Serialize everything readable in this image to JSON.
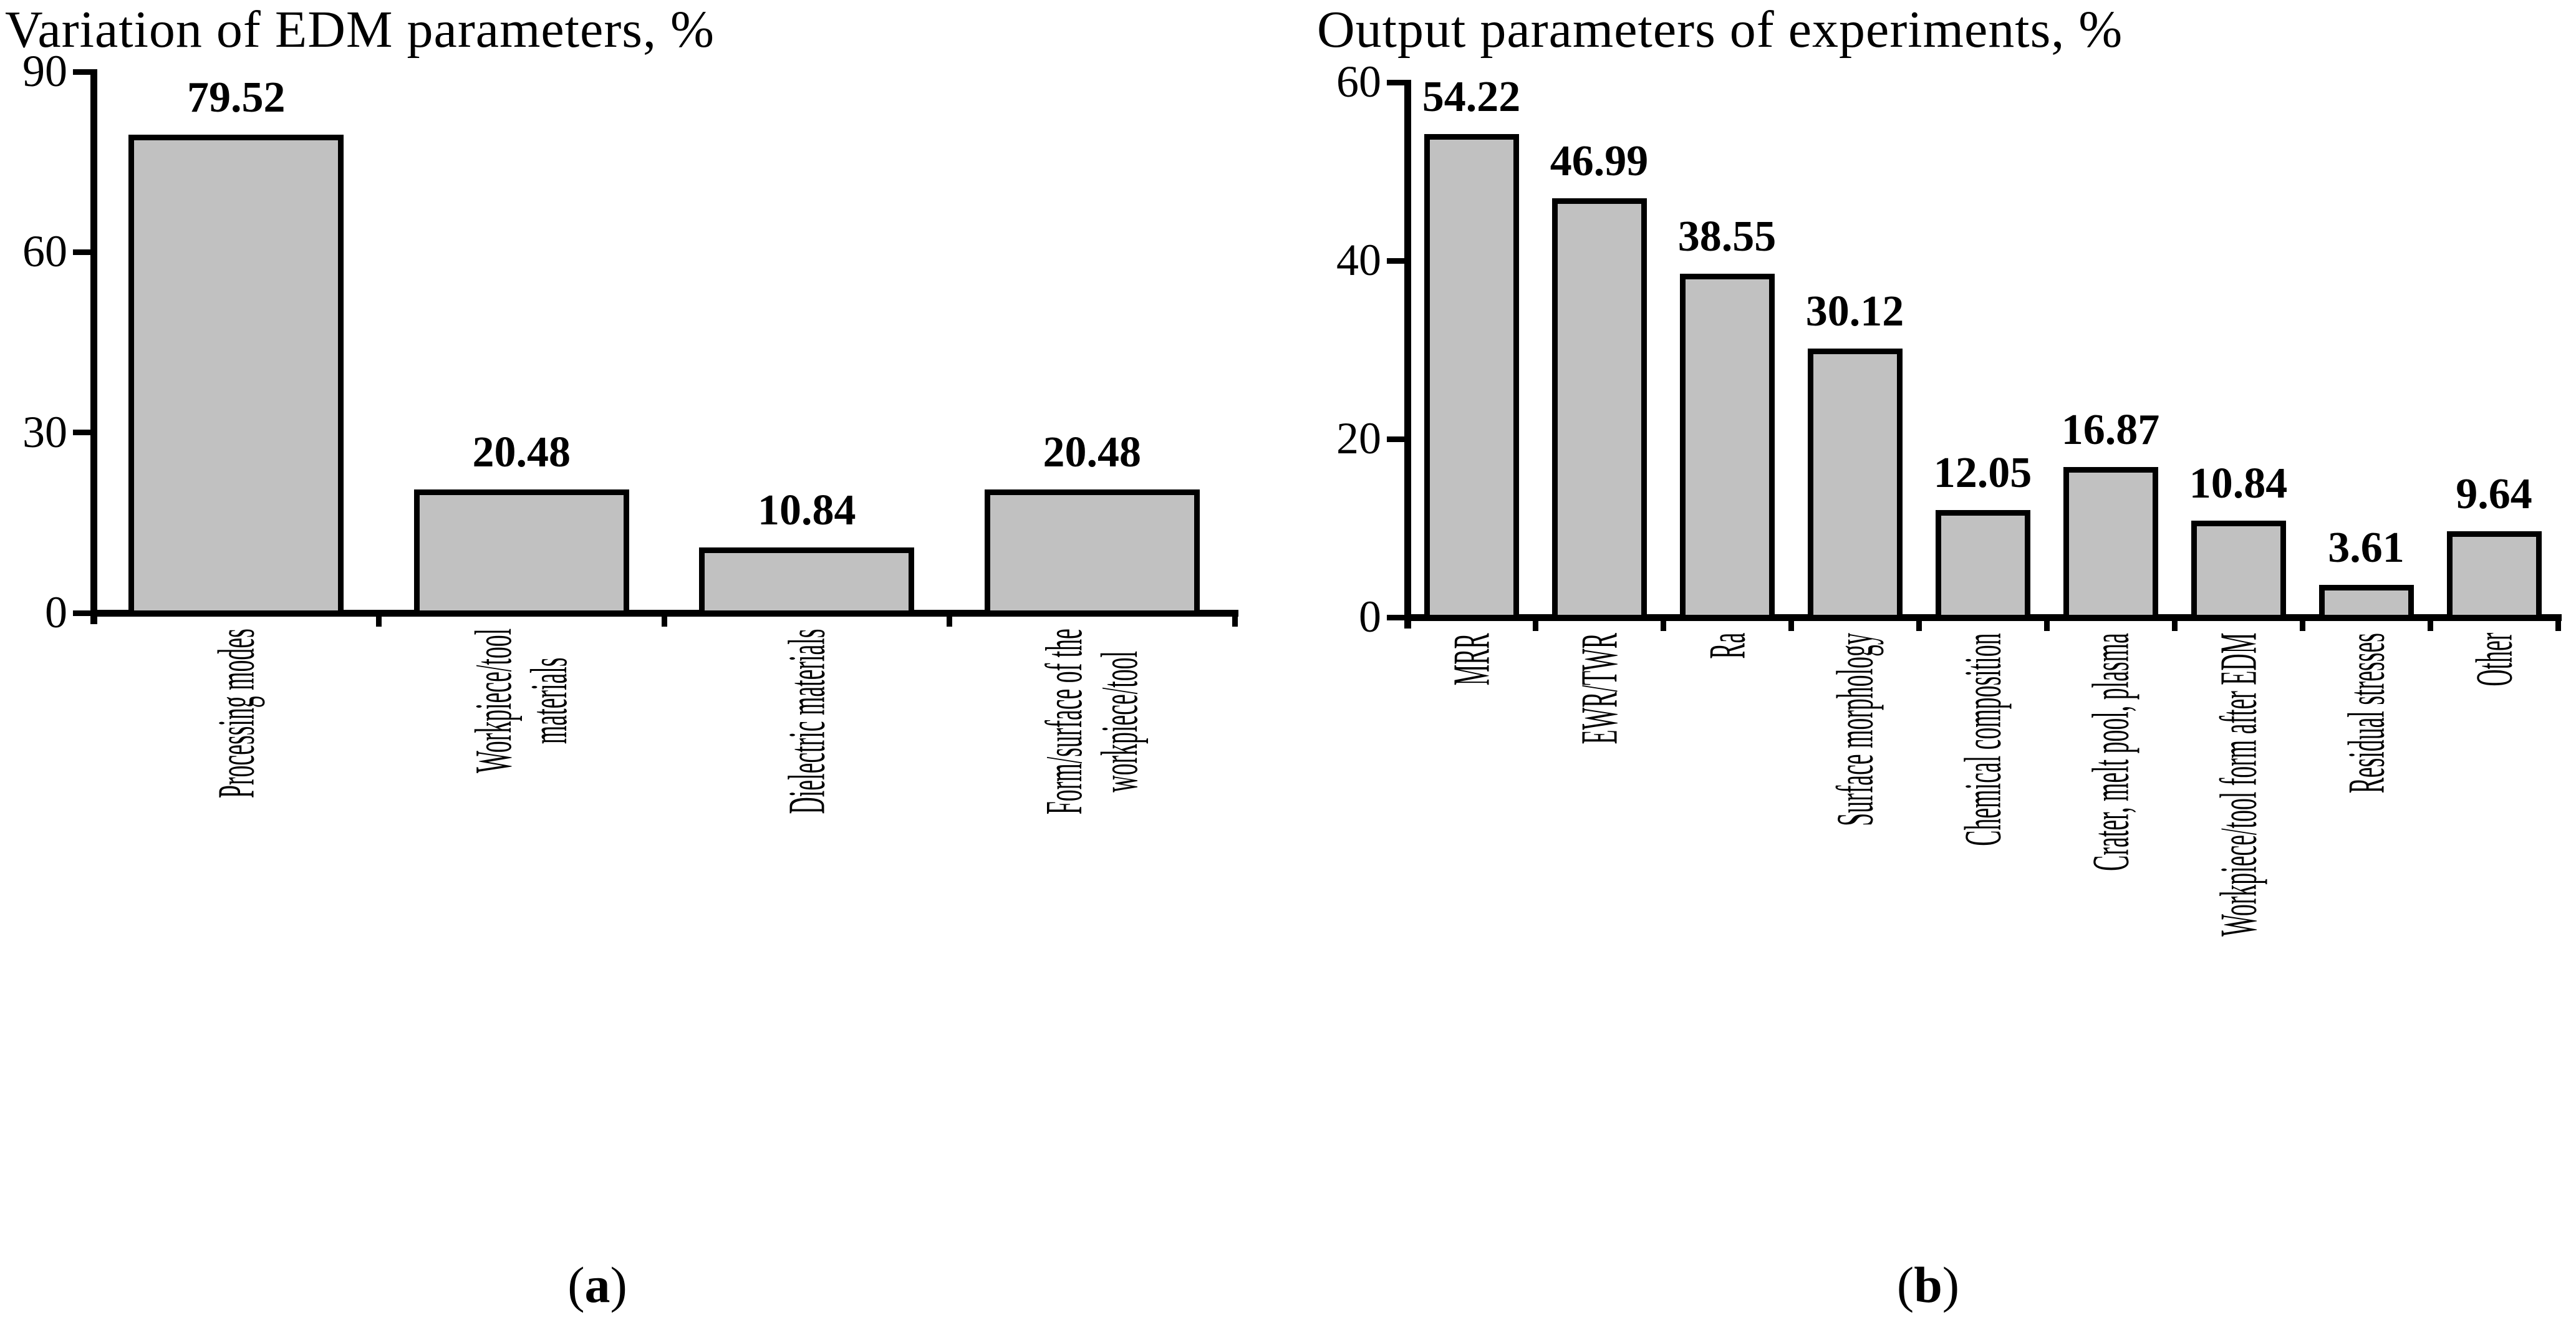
{
  "figure": {
    "background_color": "#ffffff",
    "bar_fill_color": "#c1c1c1",
    "bar_border_color": "#000000",
    "axis_color": "#000000",
    "text_color": "#000000"
  },
  "chart_data": [
    {
      "type": "bar",
      "panel": "a",
      "title": "Variation of EDM parameters, %",
      "xlabel": "",
      "ylabel": "",
      "ylim": [
        0,
        90
      ],
      "yticks": [
        0,
        30,
        60,
        90
      ],
      "grid": false,
      "legend": null,
      "categories": [
        "Processing modes",
        "Workpiece/tool\nmaterials",
        "Dielectric materials",
        "Form/surface of the\nworkpiece/tool"
      ],
      "values": [
        79.52,
        20.48,
        10.84,
        20.48
      ],
      "caption": {
        "open": "(",
        "letter": "a",
        "close": ")"
      }
    },
    {
      "type": "bar",
      "panel": "b",
      "title": "Output parameters of experiments, %",
      "xlabel": "",
      "ylabel": "",
      "ylim": [
        0,
        60
      ],
      "yticks": [
        0,
        20,
        40,
        60
      ],
      "grid": false,
      "legend": null,
      "categories": [
        "MRR",
        "EWR/TWR",
        "Ra",
        "Surface morphology",
        "Chemical composition",
        "Crater, melt pool, plasma",
        "Workpiece/tool form after EDM",
        "Residual stresses",
        "Other"
      ],
      "values": [
        54.22,
        46.99,
        38.55,
        30.12,
        12.05,
        16.87,
        10.84,
        3.61,
        9.64
      ],
      "caption": {
        "open": "(",
        "letter": "b",
        "close": ")"
      }
    }
  ]
}
